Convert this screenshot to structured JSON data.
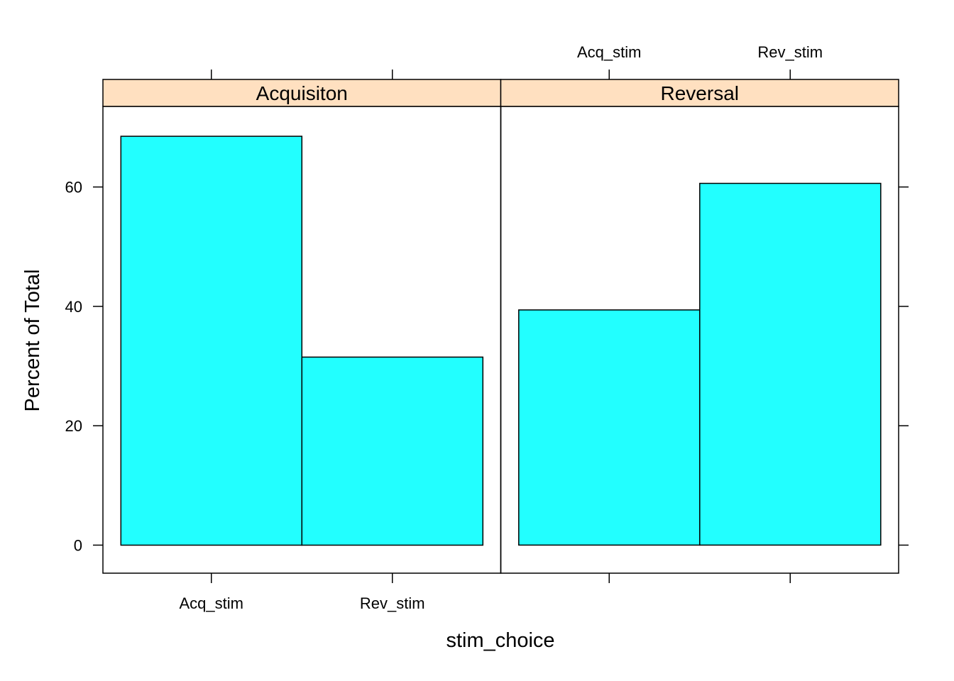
{
  "chart_data": {
    "type": "bar",
    "xlabel": "stim_choice",
    "ylabel": "Percent of Total",
    "ylim": [
      -4.7,
      73.5
    ],
    "yticks": [
      0,
      20,
      40,
      60
    ],
    "categories": [
      "Acq_stim",
      "Rev_stim"
    ],
    "panels": [
      {
        "name": "Acquisiton",
        "values": [
          68.5,
          31.5
        ]
      },
      {
        "name": "Reversal",
        "values": [
          39.4,
          60.6
        ]
      }
    ],
    "colors": {
      "bar_fill": "#22ffff",
      "strip_fill": "#ffe0c0"
    },
    "grid": false,
    "legend": "none"
  }
}
